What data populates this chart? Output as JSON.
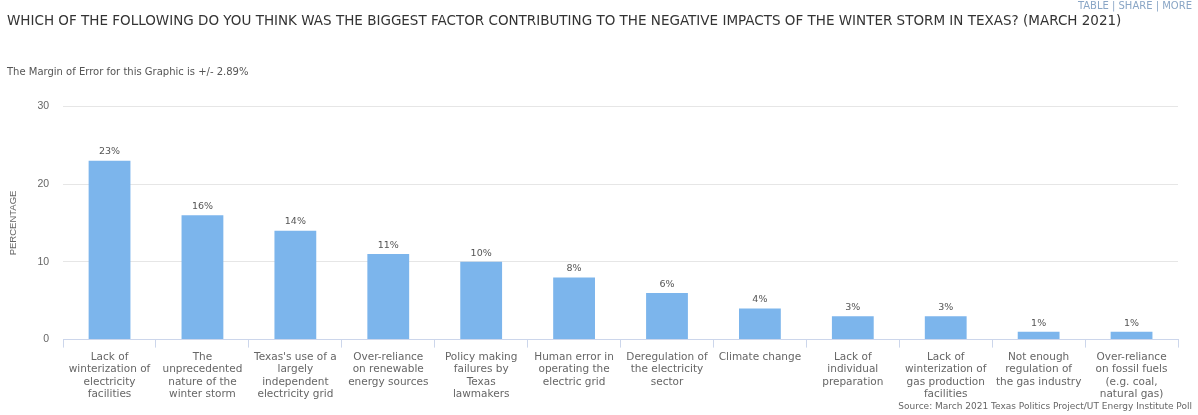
{
  "chart_data": {
    "type": "bar",
    "title": "WHICH OF THE FOLLOWING DO YOU THINK WAS THE BIGGEST FACTOR CONTRIBUTING TO THE NEGATIVE IMPACTS OF THE WINTER STORM IN TEXAS? (MARCH 2021)",
    "subtitle": "The Margin of Error for this Graphic is +/- 2.89%",
    "ylabel": "PERCENTAGE",
    "categories": [
      "Lack of winterization of electricity facilities",
      "The unprecedented nature of the winter storm",
      "Texas's use of a largely independent electricity grid",
      "Over-reliance on renewable energy sources",
      "Policy making failures by Texas lawmakers",
      "Human error in operating the electric grid",
      "Deregulation of the electricity sector",
      "Climate change",
      "Lack of individual preparation",
      "Lack of winterization of gas production facilities",
      "Not enough regulation of the gas industry",
      "Over-reliance on fossil fuels (e.g. coal, natural gas)"
    ],
    "values": [
      23,
      16,
      14,
      11,
      10,
      8,
      6,
      4,
      3,
      3,
      1,
      1
    ],
    "value_labels": [
      "23%",
      "16%",
      "14%",
      "11%",
      "10%",
      "8%",
      "6%",
      "4%",
      "3%",
      "3%",
      "1%",
      "1%"
    ],
    "color": "#7cb5ec",
    "ylim": [
      0,
      30
    ],
    "yticks": [
      0,
      10,
      20,
      30
    ],
    "grid": "y",
    "legend": false,
    "annotations": [
      "TABLE | SHARE | MORE",
      "Source: March 2021 Texas Politics Project/UT Energy Institute Poll"
    ]
  }
}
